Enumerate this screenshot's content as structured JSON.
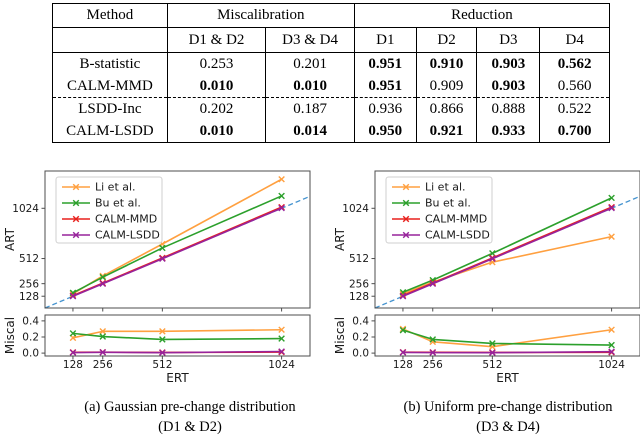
{
  "table": {
    "col_headers_top": {
      "method": "Method",
      "miscalibration": "Miscalibration",
      "reduction": "Reduction"
    },
    "col_headers_sub": [
      "D1 & D2",
      "D3 & D4",
      "D1",
      "D2",
      "D3",
      "D4"
    ],
    "rows": [
      {
        "method": "B-statistic",
        "values": [
          "0.253",
          "0.201",
          "0.951",
          "0.910",
          "0.903",
          "0.562"
        ],
        "bold": [
          false,
          false,
          true,
          true,
          true,
          true
        ]
      },
      {
        "method": "CALM-MMD",
        "values": [
          "0.010",
          "0.010",
          "0.951",
          "0.909",
          "0.903",
          "0.560"
        ],
        "bold": [
          true,
          true,
          true,
          false,
          true,
          false
        ]
      },
      {
        "method": "LSDD-Inc",
        "values": [
          "0.202",
          "0.187",
          "0.936",
          "0.866",
          "0.888",
          "0.522"
        ],
        "bold": [
          false,
          false,
          false,
          false,
          false,
          false
        ]
      },
      {
        "method": "CALM-LSDD",
        "values": [
          "0.010",
          "0.014",
          "0.950",
          "0.921",
          "0.933",
          "0.700"
        ],
        "bold": [
          true,
          true,
          true,
          true,
          true,
          true
        ]
      }
    ]
  },
  "colors": {
    "li": "#ffa040",
    "bu": "#2ca02c",
    "mmd": "#e8211d",
    "lsdd": "#97239b",
    "identity": "#4493cf",
    "spine": "#4d4d4d",
    "text": "#1a1a1a",
    "legend_border": "#cfcfcf"
  },
  "chart_data": [
    {
      "type": "line",
      "caption": {
        "line1": "(a) Gaussian pre-change distribution",
        "line2": "(D1 & D2)"
      },
      "xlabel": "ERT",
      "x": [
        128,
        256,
        512,
        1024
      ],
      "xtick_labels": [
        "128",
        "256",
        "512",
        "1024"
      ],
      "xlim": [
        8,
        1146
      ],
      "legend_position": "upper left",
      "reference_line": {
        "type": "identity",
        "style": "dashed",
        "color": "#4493cf"
      },
      "subplots": [
        {
          "ylabel": "ART",
          "ylim": [
            8,
            1404
          ],
          "ytick_values": [
            128,
            256,
            512,
            1024
          ],
          "ytick_labels": [
            "128",
            "256",
            "512",
            "1024"
          ],
          "grid": false,
          "show_identity": true,
          "series": [
            {
              "name": "Li et al.",
              "color": "#ffa040",
              "marker": "x",
              "values": [
                152,
                335,
                660,
                1320
              ]
            },
            {
              "name": "Bu et al.",
              "color": "#2ca02c",
              "marker": "x",
              "values": [
                163,
                322,
                620,
                1150
              ]
            },
            {
              "name": "CALM-MMD",
              "color": "#e8211d",
              "marker": "x",
              "values": [
                134,
                262,
                518,
                1036
              ]
            },
            {
              "name": "CALM-LSDD",
              "color": "#97239b",
              "marker": "x",
              "values": [
                128,
                255,
                510,
                1026
              ]
            }
          ]
        },
        {
          "ylabel": "Miscal",
          "ylim": [
            -0.036,
            0.473
          ],
          "ytick_values": [
            0.0,
            0.2,
            0.4
          ],
          "ytick_labels": [
            "0.0",
            "0.2",
            "0.4"
          ],
          "grid": false,
          "show_identity": false,
          "series": [
            {
              "name": "Li et al.",
              "color": "#ffa040",
              "marker": "x",
              "values": [
                0.19,
                0.27,
                0.27,
                0.29
              ]
            },
            {
              "name": "Bu et al.",
              "color": "#2ca02c",
              "marker": "x",
              "values": [
                0.245,
                0.205,
                0.17,
                0.18
              ]
            },
            {
              "name": "CALM-MMD",
              "color": "#e8211d",
              "marker": "x",
              "values": [
                0.01,
                0.012,
                0.008,
                0.012
              ]
            },
            {
              "name": "CALM-LSDD",
              "color": "#97239b",
              "marker": "x",
              "values": [
                0.006,
                0.01,
                0.005,
                0.02
              ]
            }
          ]
        }
      ]
    },
    {
      "type": "line",
      "caption": {
        "line1": "(b) Uniform pre-change distribution",
        "line2": "(D3 & D4)"
      },
      "xlabel": "ERT",
      "x": [
        128,
        256,
        512,
        1024
      ],
      "xtick_labels": [
        "128",
        "256",
        "512",
        "1024"
      ],
      "xlim": [
        8,
        1146
      ],
      "legend_position": "upper left",
      "reference_line": {
        "type": "identity",
        "style": "dashed",
        "color": "#4493cf"
      },
      "subplots": [
        {
          "ylabel": "ART",
          "ylim": [
            8,
            1404
          ],
          "ytick_values": [
            128,
            256,
            512,
            1024
          ],
          "ytick_labels": [
            "128",
            "256",
            "512",
            "1024"
          ],
          "grid": false,
          "show_identity": true,
          "series": [
            {
              "name": "Li et al.",
              "color": "#ffa040",
              "marker": "x",
              "values": [
                152,
                272,
                475,
                735
              ]
            },
            {
              "name": "Bu et al.",
              "color": "#2ca02c",
              "marker": "x",
              "values": [
                168,
                292,
                565,
                1130
              ]
            },
            {
              "name": "CALM-MMD",
              "color": "#e8211d",
              "marker": "x",
              "values": [
                134,
                262,
                518,
                1036
              ]
            },
            {
              "name": "CALM-LSDD",
              "color": "#97239b",
              "marker": "x",
              "values": [
                128,
                255,
                510,
                1026
              ]
            }
          ]
        },
        {
          "ylabel": "Miscal",
          "ylim": [
            -0.036,
            0.473
          ],
          "ytick_values": [
            0.0,
            0.2,
            0.4
          ],
          "ytick_labels": [
            "0.0",
            "0.2",
            "0.4"
          ],
          "grid": false,
          "show_identity": false,
          "series": [
            {
              "name": "Li et al.",
              "color": "#ffa040",
              "marker": "x",
              "values": [
                0.3,
                0.14,
                0.08,
                0.29
              ]
            },
            {
              "name": "Bu et al.",
              "color": "#2ca02c",
              "marker": "x",
              "values": [
                0.285,
                0.17,
                0.12,
                0.1
              ]
            },
            {
              "name": "CALM-MMD",
              "color": "#e8211d",
              "marker": "x",
              "values": [
                0.012,
                0.01,
                0.008,
                0.01
              ]
            },
            {
              "name": "CALM-LSDD",
              "color": "#97239b",
              "marker": "x",
              "values": [
                0.008,
                0.006,
                0.005,
                0.018
              ]
            }
          ]
        }
      ]
    }
  ]
}
